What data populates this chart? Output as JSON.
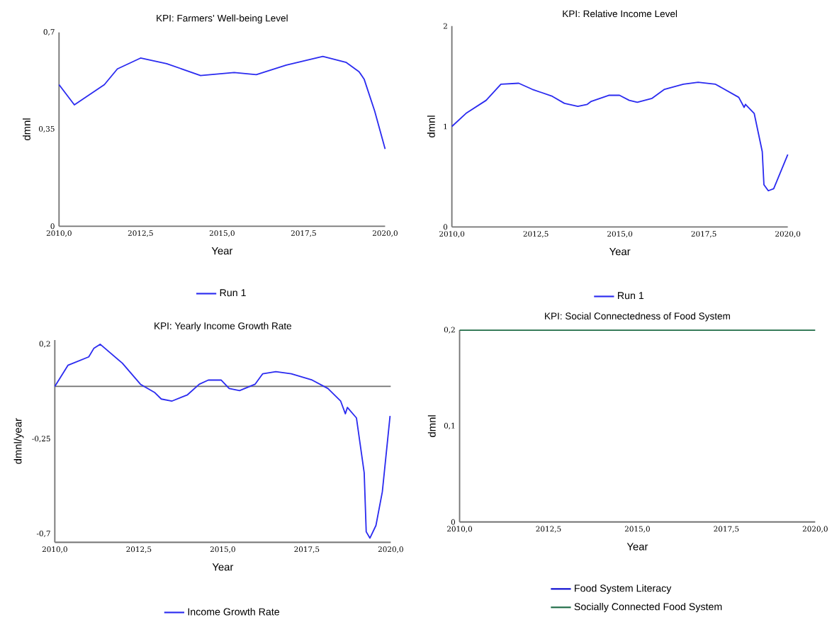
{
  "chart_data": [
    {
      "type": "line",
      "title": "KPI: Farmers’ Well-being Level",
      "xlabel": "Year",
      "ylabel": "dmnl",
      "x": [
        2010,
        2010.47,
        2011.39,
        2011.79,
        2012.5,
        2013.3,
        2014.34,
        2015.37,
        2016.05,
        2016.97,
        2018.09,
        2018.81,
        2019.2,
        2019.36,
        2019.68,
        2020
      ],
      "series": [
        {
          "name": "Run 1",
          "color": "#2b2bf0",
          "values": [
            0.511,
            0.438,
            0.511,
            0.568,
            0.607,
            0.587,
            0.544,
            0.555,
            0.547,
            0.582,
            0.613,
            0.591,
            0.558,
            0.53,
            0.416,
            0.279
          ]
        }
      ],
      "xlim": [
        2010,
        2020
      ],
      "xticks": [
        {
          "value": 2010,
          "label": "2010,0"
        },
        {
          "value": 2012.5,
          "label": "2012,5"
        },
        {
          "value": 2015,
          "label": "2015,0"
        },
        {
          "value": 2017.5,
          "label": "2017,5"
        },
        {
          "value": 2020,
          "label": "2020,0"
        }
      ],
      "ylim": [
        0,
        0.7
      ],
      "yticks": [
        0,
        {
          "value": 0.35,
          "label": "0,35"
        },
        {
          "value": 0.7,
          "label": "0,7"
        }
      ],
      "legend": "bottom"
    },
    {
      "type": "line",
      "title": "KPI: Relative Income Level",
      "xlabel": "Year",
      "ylabel": "dmnl",
      "x": [
        2010,
        2010.42,
        2011.02,
        2011.46,
        2011.99,
        2012.39,
        2012.99,
        2013.35,
        2013.75,
        2014.03,
        2014.15,
        2014.67,
        2014.99,
        2015.28,
        2015.52,
        2015.96,
        2016.33,
        2016.89,
        2017.33,
        2017.85,
        2018.54,
        2018.7,
        2018.74,
        2019.0,
        2019.24,
        2019.29,
        2019.42,
        2019.58,
        2020
      ],
      "series": [
        {
          "name": "Run 1",
          "color": "#2b2bf0",
          "values": [
            1.0,
            1.13,
            1.26,
            1.42,
            1.43,
            1.37,
            1.3,
            1.23,
            1.2,
            1.22,
            1.25,
            1.31,
            1.31,
            1.26,
            1.24,
            1.28,
            1.37,
            1.42,
            1.44,
            1.42,
            1.29,
            1.19,
            1.22,
            1.13,
            0.75,
            0.42,
            0.36,
            0.38,
            0.72
          ]
        }
      ],
      "xlim": [
        2010,
        2020
      ],
      "xticks": [
        {
          "value": 2010,
          "label": "2010,0"
        },
        {
          "value": 2012.5,
          "label": "2012,5"
        },
        {
          "value": 2015,
          "label": "2015,0"
        },
        {
          "value": 2017.5,
          "label": "2017,5"
        },
        {
          "value": 2020,
          "label": "2020,0"
        }
      ],
      "ylim": [
        0,
        2
      ],
      "yticks": [
        0,
        1,
        2
      ],
      "legend": "bottom"
    },
    {
      "type": "line",
      "title": "KPI: Yearly Income Growth Rate",
      "xlabel": "Year",
      "ylabel": "dmnl/year",
      "x": [
        2010,
        2010.39,
        2011.01,
        2011.16,
        2011.35,
        2012.01,
        2012.55,
        2012.98,
        2013.17,
        2013.48,
        2013.95,
        2014.3,
        2014.57,
        2014.95,
        2015.19,
        2015.5,
        2015.96,
        2016.19,
        2016.58,
        2017.04,
        2017.66,
        2018.13,
        2018.51,
        2018.65,
        2018.71,
        2018.98,
        2019.21,
        2019.27,
        2019.38,
        2019.56,
        2019.75,
        2019.98
      ],
      "series": [
        {
          "name": "Income Growth Rate",
          "color": "#2b2bf0",
          "values": [
            0.0,
            0.1,
            0.14,
            0.18,
            0.2,
            0.11,
            0.01,
            -0.03,
            -0.06,
            -0.07,
            -0.04,
            0.01,
            0.03,
            0.03,
            -0.01,
            -0.02,
            0.01,
            0.06,
            0.07,
            0.06,
            0.03,
            -0.01,
            -0.07,
            -0.13,
            -0.1,
            -0.15,
            -0.41,
            -0.69,
            -0.72,
            -0.66,
            -0.5,
            -0.14
          ]
        }
      ],
      "xlim": [
        2010,
        2020
      ],
      "xticks": [
        {
          "value": 2010,
          "label": "2010,0"
        },
        {
          "value": 2012.5,
          "label": "2012,5"
        },
        {
          "value": 2015,
          "label": "2015,0"
        },
        {
          "value": 2017.5,
          "label": "2017,5"
        },
        {
          "value": 2020,
          "label": "2020,0"
        }
      ],
      "ylim": [
        -0.74,
        0.22
      ],
      "yticks": [
        {
          "value": -0.7,
          "label": "-0,7"
        },
        {
          "value": -0.25,
          "label": "-0,25"
        },
        {
          "value": 0.2,
          "label": "0,2"
        }
      ],
      "ref_lines": [
        {
          "axis": "y",
          "value": 0,
          "color": "#707070"
        }
      ],
      "legend": "bottom"
    },
    {
      "type": "line",
      "title": "KPI: Social Connectedness of Food System",
      "xlabel": "Year",
      "ylabel": "dmnl",
      "x": [
        2010,
        2020
      ],
      "series": [
        {
          "name": "Food System Literacy",
          "color": "#0a0ad0",
          "values": [
            null,
            null
          ]
        },
        {
          "name": "Socially Connected Food System",
          "color": "#1d6b45",
          "values": [
            0.2,
            0.2
          ]
        }
      ],
      "xlim": [
        2010,
        2020
      ],
      "xticks": [
        {
          "value": 2010,
          "label": "2010,0"
        },
        {
          "value": 2012.5,
          "label": "2012,5"
        },
        {
          "value": 2015,
          "label": "2015,0"
        },
        {
          "value": 2017.5,
          "label": "2017,5"
        },
        {
          "value": 2020,
          "label": "2020,0"
        }
      ],
      "ylim": [
        0,
        0.2
      ],
      "yticks": [
        0,
        {
          "value": 0.1,
          "label": "0,1"
        },
        {
          "value": 0.2,
          "label": "0,2"
        }
      ],
      "legend": "bottom"
    }
  ]
}
